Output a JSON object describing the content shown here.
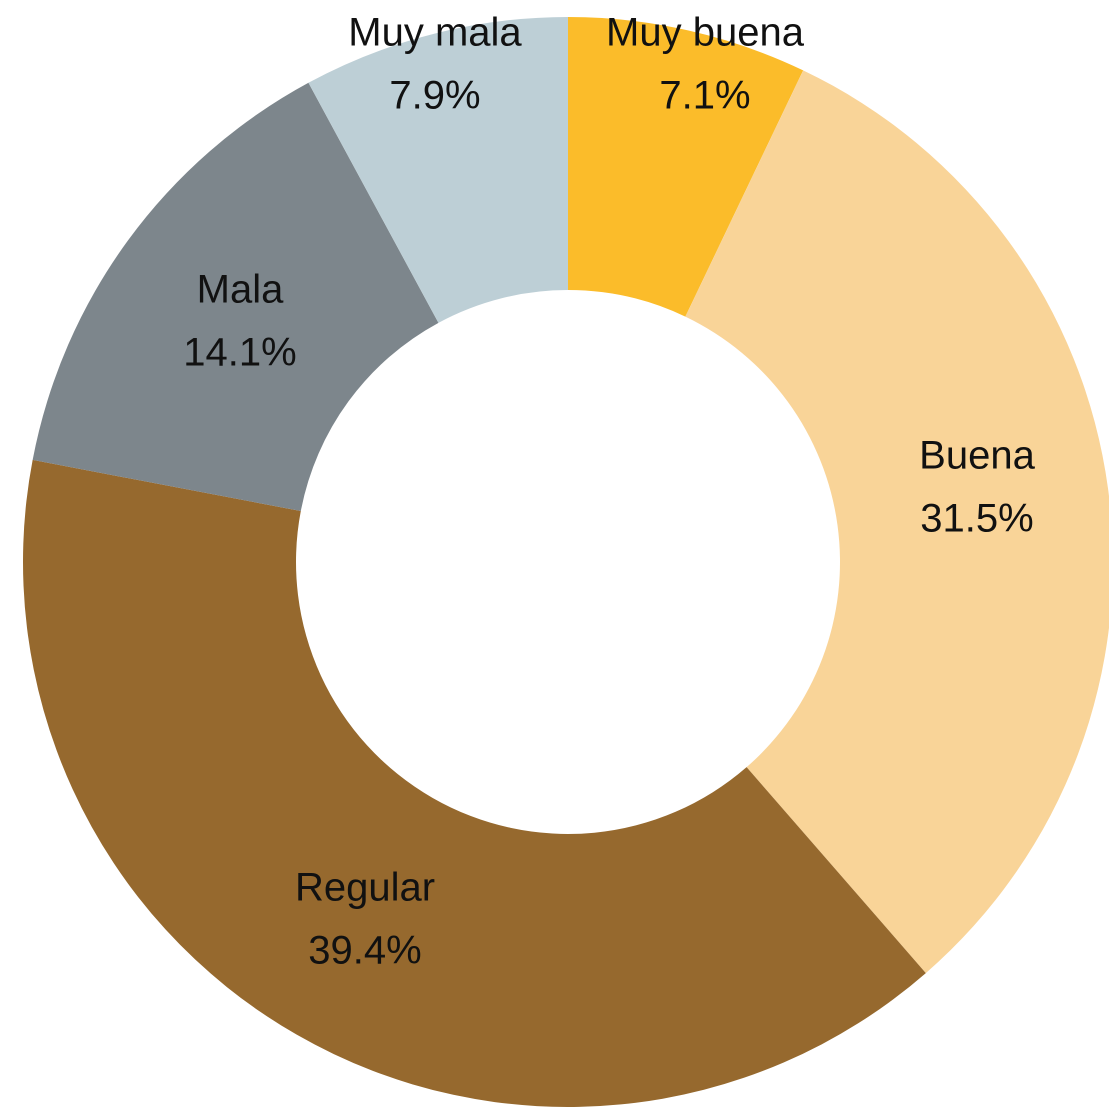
{
  "chart_data": {
    "type": "donut",
    "categories": [
      "Muy buena",
      "Buena",
      "Regular",
      "Mala",
      "Muy mala"
    ],
    "values": [
      7.1,
      31.5,
      39.4,
      14.1,
      7.9
    ],
    "value_labels": [
      "7.1%",
      "31.5%",
      "39.4%",
      "14.1%",
      "7.9%"
    ],
    "colors": [
      "#FBBC2A",
      "#F9D498",
      "#96692E",
      "#7D868C",
      "#BDCFD6"
    ]
  }
}
